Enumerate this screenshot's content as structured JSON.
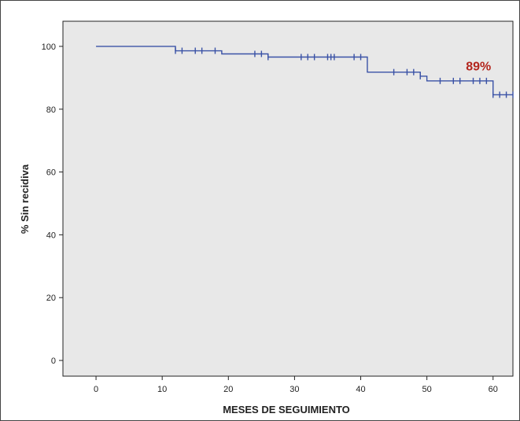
{
  "chart_data": {
    "type": "line",
    "subtype": "kaplan-meier",
    "xlabel": "MESES DE SEGUIMIENTO",
    "ylabel": "% Sin recidiva",
    "xlim": [
      -5,
      63
    ],
    "ylim": [
      -5,
      108
    ],
    "x_ticks": [
      0,
      10,
      20,
      30,
      40,
      50,
      60
    ],
    "y_ticks": [
      0,
      20,
      40,
      60,
      80,
      100
    ],
    "grid": false,
    "legend": "none",
    "series": [
      {
        "steps": [
          [
            0,
            100
          ],
          [
            12,
            98.6
          ],
          [
            19,
            97.6
          ],
          [
            26,
            96.6
          ],
          [
            41,
            91.8
          ],
          [
            49,
            90.5
          ],
          [
            50,
            89.0
          ],
          [
            60,
            84.6
          ],
          [
            63,
            84.6
          ]
        ],
        "censored": [
          [
            12,
            98.6
          ],
          [
            13,
            98.6
          ],
          [
            15,
            98.6
          ],
          [
            16,
            98.6
          ],
          [
            18,
            98.6
          ],
          [
            24,
            97.6
          ],
          [
            25,
            97.6
          ],
          [
            26,
            96.6
          ],
          [
            31,
            96.6
          ],
          [
            32,
            96.6
          ],
          [
            33,
            96.6
          ],
          [
            35,
            96.6
          ],
          [
            35.5,
            96.6
          ],
          [
            36,
            96.6
          ],
          [
            39,
            96.6
          ],
          [
            40,
            96.6
          ],
          [
            45,
            91.8
          ],
          [
            47,
            91.8
          ],
          [
            48,
            91.8
          ],
          [
            49,
            90.5
          ],
          [
            52,
            89.0
          ],
          [
            54,
            89.0
          ],
          [
            55,
            89.0
          ],
          [
            57,
            89.0
          ],
          [
            58,
            89.0
          ],
          [
            59,
            89.0
          ],
          [
            60,
            84.6
          ],
          [
            61,
            84.6
          ],
          [
            62,
            84.6
          ],
          [
            63,
            84.6
          ]
        ]
      }
    ],
    "annotations": [
      {
        "text": "89%",
        "x": 57.8,
        "y": 92.3,
        "color": "#b3261e"
      }
    ]
  },
  "colors": {
    "plot_background": "#e8e8e8",
    "series_line": "#3a52a6",
    "annotation": "#b3261e",
    "axis": "#222222"
  }
}
